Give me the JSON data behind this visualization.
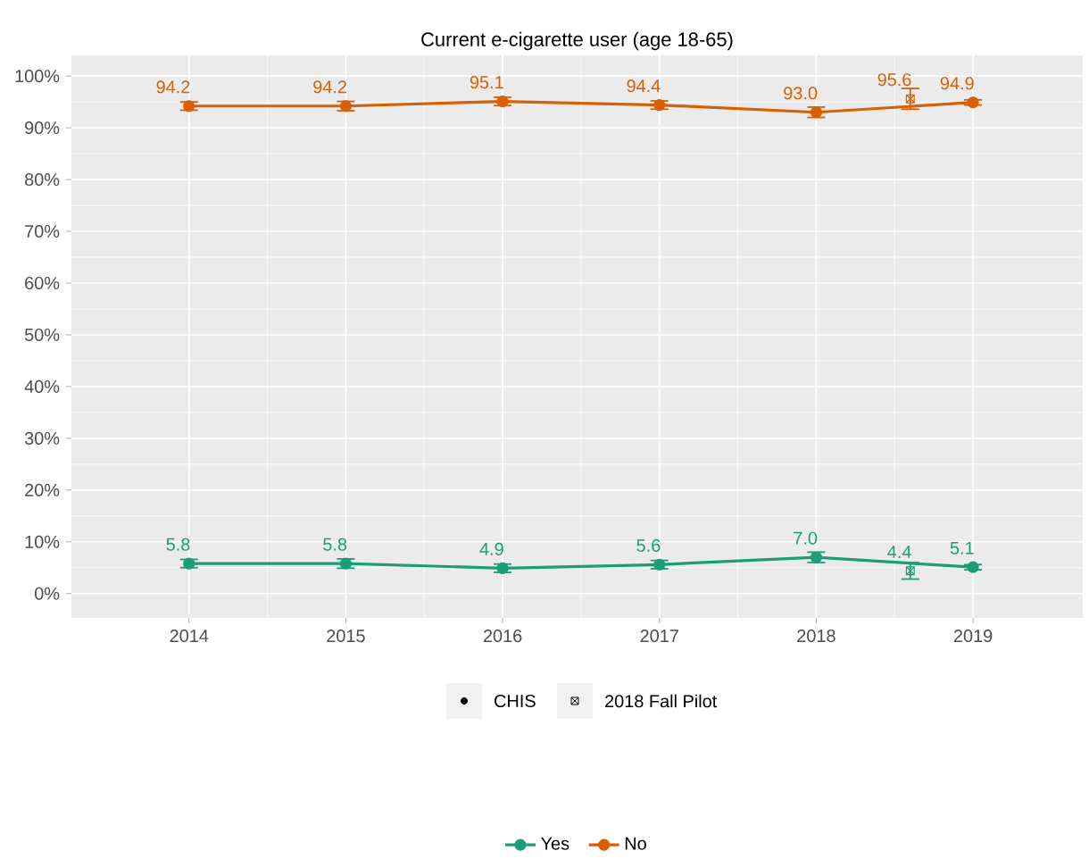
{
  "chart_data": {
    "type": "line",
    "title": "Current e-cigarette user (age 18-65)",
    "x": [
      2014,
      2015,
      2016,
      2017,
      2018,
      2019
    ],
    "xlim": [
      2013.25,
      2019.7
    ],
    "xticks": [
      2014,
      2015,
      2016,
      2017,
      2018,
      2019
    ],
    "ylim": [
      -4.7,
      104
    ],
    "yticks": [
      {
        "value": 0,
        "label": "0%"
      },
      {
        "value": 10,
        "label": "10%"
      },
      {
        "value": 20,
        "label": "20%"
      },
      {
        "value": 30,
        "label": "30%"
      },
      {
        "value": 40,
        "label": "40%"
      },
      {
        "value": 50,
        "label": "50%"
      },
      {
        "value": 60,
        "label": "60%"
      },
      {
        "value": 70,
        "label": "70%"
      },
      {
        "value": 80,
        "label": "80%"
      },
      {
        "value": 90,
        "label": "90%"
      },
      {
        "value": 100,
        "label": "100%"
      }
    ],
    "grid": true,
    "legend": "bottom",
    "marker": "circle",
    "annotations": [
      "CHIS",
      "2018 Fall Pilot"
    ],
    "series": [
      {
        "name": "Yes",
        "color": "#1b9e77",
        "values": [
          5.8,
          5.8,
          4.9,
          5.6,
          7.0,
          5.1
        ],
        "errors": [
          0.8,
          0.9,
          0.8,
          0.8,
          1.0,
          0.5
        ],
        "value_labels": [
          "5.8",
          "5.8",
          "4.9",
          "5.6",
          "7.0",
          "5.1"
        ]
      },
      {
        "name": "No",
        "color": "#d95f02",
        "values": [
          94.2,
          94.2,
          95.1,
          94.4,
          93.0,
          94.9
        ],
        "errors": [
          0.8,
          0.9,
          0.8,
          0.8,
          1.0,
          0.5
        ],
        "value_labels": [
          "94.2",
          "94.2",
          "95.1",
          "94.4",
          "93.0",
          "94.9"
        ]
      },
      {
        "type": "scatter",
        "marker": "cross",
        "color": "#1b9e77",
        "x": [
          2018.6
        ],
        "values": [
          4.4
        ],
        "errors": [
          [
            2.8,
            6.0
          ]
        ],
        "value_labels": [
          "4.4"
        ]
      },
      {
        "type": "scatter",
        "marker": "cross",
        "color": "#d95f02",
        "x": [
          2018.6
        ],
        "values": [
          95.6
        ],
        "errors": [
          [
            93.6,
            97.6
          ]
        ],
        "value_labels": [
          "95.6"
        ]
      }
    ]
  }
}
